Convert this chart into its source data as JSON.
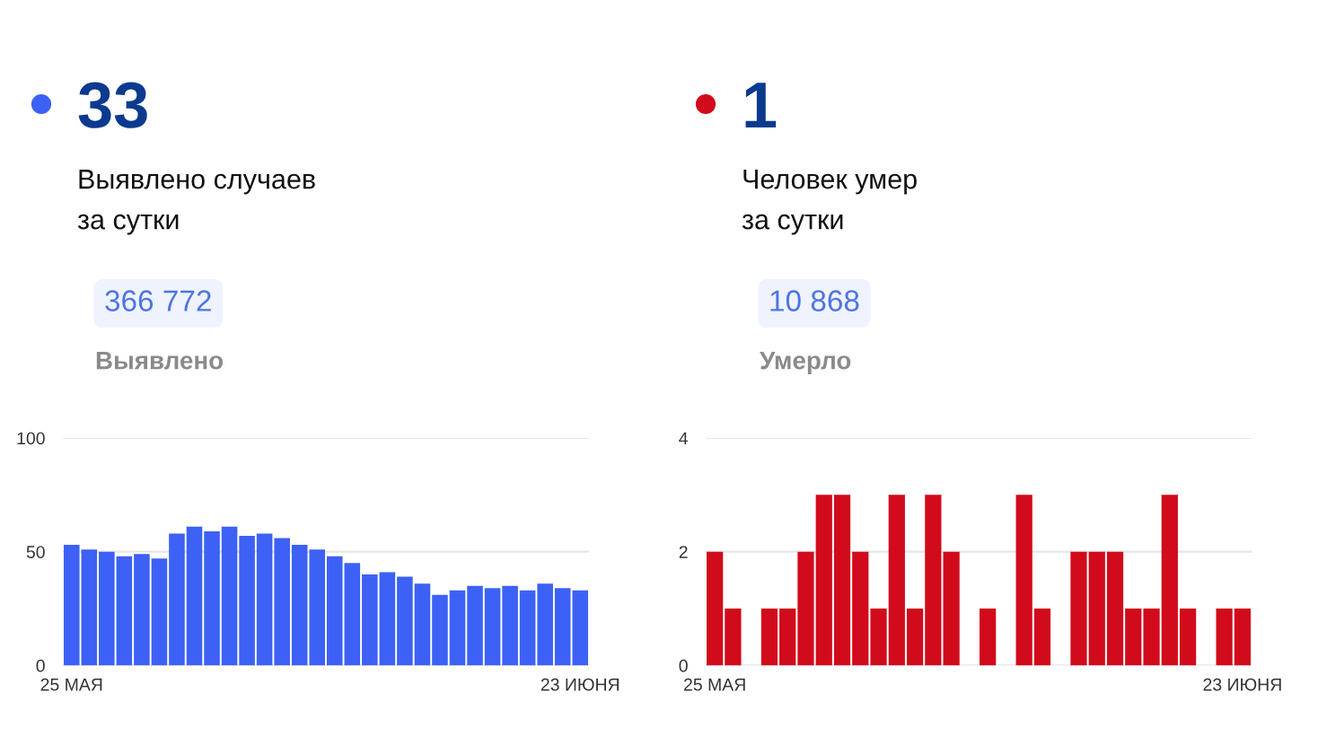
{
  "chart_data": [
    {
      "type": "bar",
      "title": "33",
      "subtitle": "Выявлено случаев\nза сутки",
      "annotations": [
        "366 772",
        "Выявлено"
      ],
      "categories": [
        "25 МАЯ",
        null,
        null,
        null,
        null,
        null,
        null,
        null,
        null,
        null,
        null,
        null,
        null,
        null,
        null,
        null,
        null,
        null,
        null,
        null,
        null,
        null,
        null,
        null,
        null,
        null,
        null,
        null,
        null,
        "23 ИЮНЯ"
      ],
      "values": [
        53,
        51,
        50,
        48,
        49,
        47,
        58,
        61,
        59,
        61,
        57,
        58,
        56,
        53,
        51,
        48,
        45,
        40,
        41,
        39,
        36,
        31,
        33,
        35,
        34,
        35,
        33,
        36,
        34,
        33
      ],
      "color": "#3c61f4",
      "ylim": [
        0,
        100
      ],
      "yticks": [
        0,
        50,
        100
      ],
      "grid": "y"
    },
    {
      "type": "bar",
      "title": "1",
      "subtitle": "Человек умер\nза сутки",
      "annotations": [
        "10 868",
        "Умерло"
      ],
      "categories": [
        "25 МАЯ",
        null,
        null,
        null,
        null,
        null,
        null,
        null,
        null,
        null,
        null,
        null,
        null,
        null,
        null,
        null,
        null,
        null,
        null,
        null,
        null,
        null,
        null,
        null,
        null,
        null,
        null,
        null,
        null,
        "23 ИЮНЯ"
      ],
      "values": [
        2,
        1,
        0,
        1,
        1,
        2,
        3,
        3,
        2,
        1,
        3,
        1,
        3,
        2,
        0,
        1,
        0,
        3,
        1,
        0,
        2,
        2,
        2,
        1,
        1,
        3,
        1,
        0,
        1,
        1
      ],
      "color": "#d10b1b",
      "ylim": [
        0,
        4
      ],
      "yticks": [
        0,
        2,
        4
      ],
      "grid": "y"
    }
  ]
}
